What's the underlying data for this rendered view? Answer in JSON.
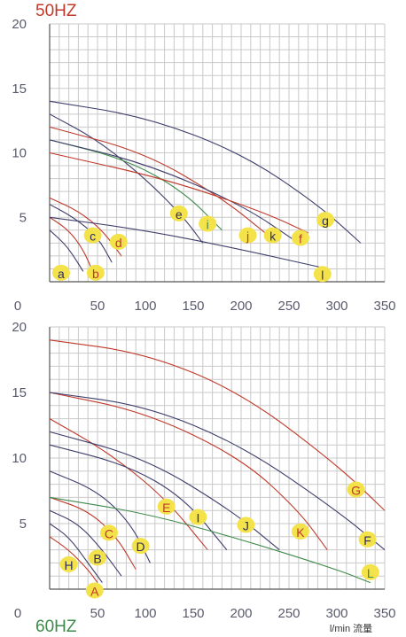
{
  "colors": {
    "grid": "#c9c9c9",
    "axis": "#555555",
    "badge": "#f3e24a",
    "navy": "#3d3d6b",
    "red": "#c0392b",
    "green": "#3e8a4a",
    "label_red": "#c0392b",
    "label_navy": "#2e2e5c"
  },
  "chart_data": [
    {
      "type": "line",
      "title": "50HZ",
      "xlabel": "",
      "ylabel": "",
      "xlim": [
        0,
        350
      ],
      "ylim": [
        0,
        20
      ],
      "grid": true,
      "x_ticks": [
        "0",
        "50",
        "100",
        "150",
        "200",
        "250",
        "300",
        "350"
      ],
      "y_ticks": [
        "5",
        "10",
        "15",
        "20"
      ],
      "series": [
        {
          "name": "a",
          "label_color": "navy",
          "line_color": "navy",
          "points": [
            [
              0,
              4
            ],
            [
              15,
              3
            ],
            [
              25,
              2
            ],
            [
              35,
              0.8
            ]
          ],
          "label_at": [
            12,
            0.7
          ]
        },
        {
          "name": "b",
          "label_color": "red",
          "line_color": "red",
          "points": [
            [
              0,
              5
            ],
            [
              20,
              4
            ],
            [
              35,
              2.5
            ],
            [
              45,
              0.8
            ]
          ],
          "label_at": [
            48,
            0.7
          ]
        },
        {
          "name": "c",
          "label_color": "navy",
          "line_color": "navy",
          "points": [
            [
              0,
              6
            ],
            [
              25,
              5
            ],
            [
              50,
              3.5
            ],
            [
              65,
              1.5
            ]
          ],
          "label_at": [
            45,
            3.6
          ]
        },
        {
          "name": "d",
          "label_color": "red",
          "line_color": "red",
          "points": [
            [
              0,
              6.5
            ],
            [
              30,
              5.5
            ],
            [
              55,
              4
            ],
            [
              75,
              2
            ]
          ],
          "label_at": [
            72,
            3.1
          ]
        },
        {
          "name": "e",
          "label_color": "navy",
          "line_color": "navy",
          "points": [
            [
              0,
              13
            ],
            [
              50,
              11
            ],
            [
              100,
              8
            ],
            [
              140,
              5
            ],
            [
              160,
              3
            ]
          ],
          "label_at": [
            135,
            5.3
          ]
        },
        {
          "name": "i",
          "label_color": "green",
          "line_color": "green",
          "points": [
            [
              0,
              11
            ],
            [
              80,
              9.5
            ],
            [
              140,
              7
            ],
            [
              180,
              4
            ]
          ],
          "label_at": [
            165,
            4.5
          ]
        },
        {
          "name": "j",
          "label_color": "red",
          "line_color": "red",
          "points": [
            [
              0,
              12
            ],
            [
              100,
              10
            ],
            [
              180,
              6.5
            ],
            [
              230,
              3.5
            ]
          ],
          "label_at": [
            207,
            3.6
          ]
        },
        {
          "name": "k",
          "label_color": "navy",
          "line_color": "navy",
          "points": [
            [
              0,
              11
            ],
            [
              100,
              9.2
            ],
            [
              200,
              6
            ],
            [
              260,
              3
            ]
          ],
          "label_at": [
            233,
            3.6
          ]
        },
        {
          "name": "f",
          "label_color": "red",
          "line_color": "red",
          "points": [
            [
              0,
              10
            ],
            [
              120,
              8
            ],
            [
              220,
              5.5
            ],
            [
              270,
              3.8
            ]
          ],
          "label_at": [
            262,
            3.4
          ]
        },
        {
          "name": "g",
          "label_color": "navy",
          "line_color": "navy",
          "points": [
            [
              0,
              14
            ],
            [
              100,
              12.8
            ],
            [
              200,
              10
            ],
            [
              280,
              6
            ],
            [
              325,
              3
            ]
          ],
          "label_at": [
            288,
            4.8
          ]
        },
        {
          "name": "l",
          "label_color": "navy",
          "line_color": "navy",
          "points": [
            [
              0,
              5
            ],
            [
              100,
              4
            ],
            [
              200,
              2.5
            ],
            [
              290,
              1
            ]
          ],
          "label_at": [
            285,
            0.6
          ]
        }
      ]
    },
    {
      "type": "line",
      "title": "60HZ",
      "xlabel": "l/min 流量",
      "ylabel": "",
      "xlim": [
        0,
        350
      ],
      "ylim": [
        0,
        20
      ],
      "grid": true,
      "x_ticks": [
        "0",
        "50",
        "100",
        "150",
        "200",
        "250",
        "300",
        "350"
      ],
      "y_ticks": [
        "5",
        "10",
        "15",
        "20"
      ],
      "series": [
        {
          "name": "A",
          "label_color": "red",
          "line_color": "red",
          "points": [
            [
              0,
              4
            ],
            [
              20,
              3
            ],
            [
              40,
              1.5
            ],
            [
              50,
              0.5
            ]
          ],
          "label_at": [
            47,
            -0.1
          ]
        },
        {
          "name": "H",
          "label_color": "navy",
          "line_color": "navy",
          "points": [
            [
              0,
              5
            ],
            [
              20,
              4
            ],
            [
              40,
              2
            ],
            [
              55,
              0.5
            ]
          ],
          "label_at": [
            20,
            1.9
          ]
        },
        {
          "name": "B",
          "label_color": "navy",
          "line_color": "navy",
          "points": [
            [
              0,
              6
            ],
            [
              30,
              5
            ],
            [
              55,
              3
            ],
            [
              75,
              1
            ]
          ],
          "label_at": [
            50,
            2.4
          ]
        },
        {
          "name": "C",
          "label_color": "red",
          "line_color": "red",
          "points": [
            [
              0,
              7
            ],
            [
              40,
              6
            ],
            [
              70,
              4
            ],
            [
              90,
              1.5
            ]
          ],
          "label_at": [
            62,
            4.3
          ]
        },
        {
          "name": "D",
          "label_color": "navy",
          "line_color": "navy",
          "points": [
            [
              0,
              9
            ],
            [
              50,
              7.5
            ],
            [
              85,
              5
            ],
            [
              105,
              2
            ]
          ],
          "label_at": [
            95,
            3.3
          ]
        },
        {
          "name": "E",
          "label_color": "red",
          "line_color": "red",
          "points": [
            [
              0,
              13
            ],
            [
              60,
              10.5
            ],
            [
              120,
              7
            ],
            [
              165,
              3
            ]
          ],
          "label_at": [
            122,
            6.3
          ]
        },
        {
          "name": "I",
          "label_color": "navy",
          "line_color": "navy",
          "points": [
            [
              0,
              11
            ],
            [
              80,
              9.5
            ],
            [
              140,
              7
            ],
            [
              185,
              3
            ]
          ],
          "label_at": [
            155,
            5.5
          ]
        },
        {
          "name": "J",
          "label_color": "navy",
          "line_color": "navy",
          "points": [
            [
              0,
              12
            ],
            [
              100,
              10
            ],
            [
              190,
              6
            ],
            [
              240,
              3
            ]
          ],
          "label_at": [
            205,
            4.9
          ]
        },
        {
          "name": "K",
          "label_color": "red",
          "line_color": "red",
          "points": [
            [
              0,
              15
            ],
            [
              100,
              13.5
            ],
            [
              200,
              10
            ],
            [
              260,
              6
            ],
            [
              290,
              3
            ]
          ],
          "label_at": [
            262,
            4.4
          ]
        },
        {
          "name": "G",
          "label_color": "red",
          "line_color": "red",
          "points": [
            [
              0,
              19
            ],
            [
              100,
              18
            ],
            [
              200,
              15
            ],
            [
              300,
              9.5
            ],
            [
              350,
              6
            ]
          ],
          "label_at": [
            320,
            7.6
          ]
        },
        {
          "name": "F",
          "label_color": "navy",
          "line_color": "navy",
          "points": [
            [
              0,
              15
            ],
            [
              100,
              14
            ],
            [
              200,
              11
            ],
            [
              300,
              6
            ],
            [
              350,
              3
            ]
          ],
          "label_at": [
            332,
            3.8
          ]
        },
        {
          "name": "L",
          "label_color": "green",
          "line_color": "green",
          "points": [
            [
              0,
              7
            ],
            [
              100,
              5.8
            ],
            [
              200,
              3.8
            ],
            [
              300,
              1.5
            ],
            [
              335,
              0.5
            ]
          ],
          "label_at": [
            335,
            1.3
          ]
        }
      ]
    }
  ]
}
